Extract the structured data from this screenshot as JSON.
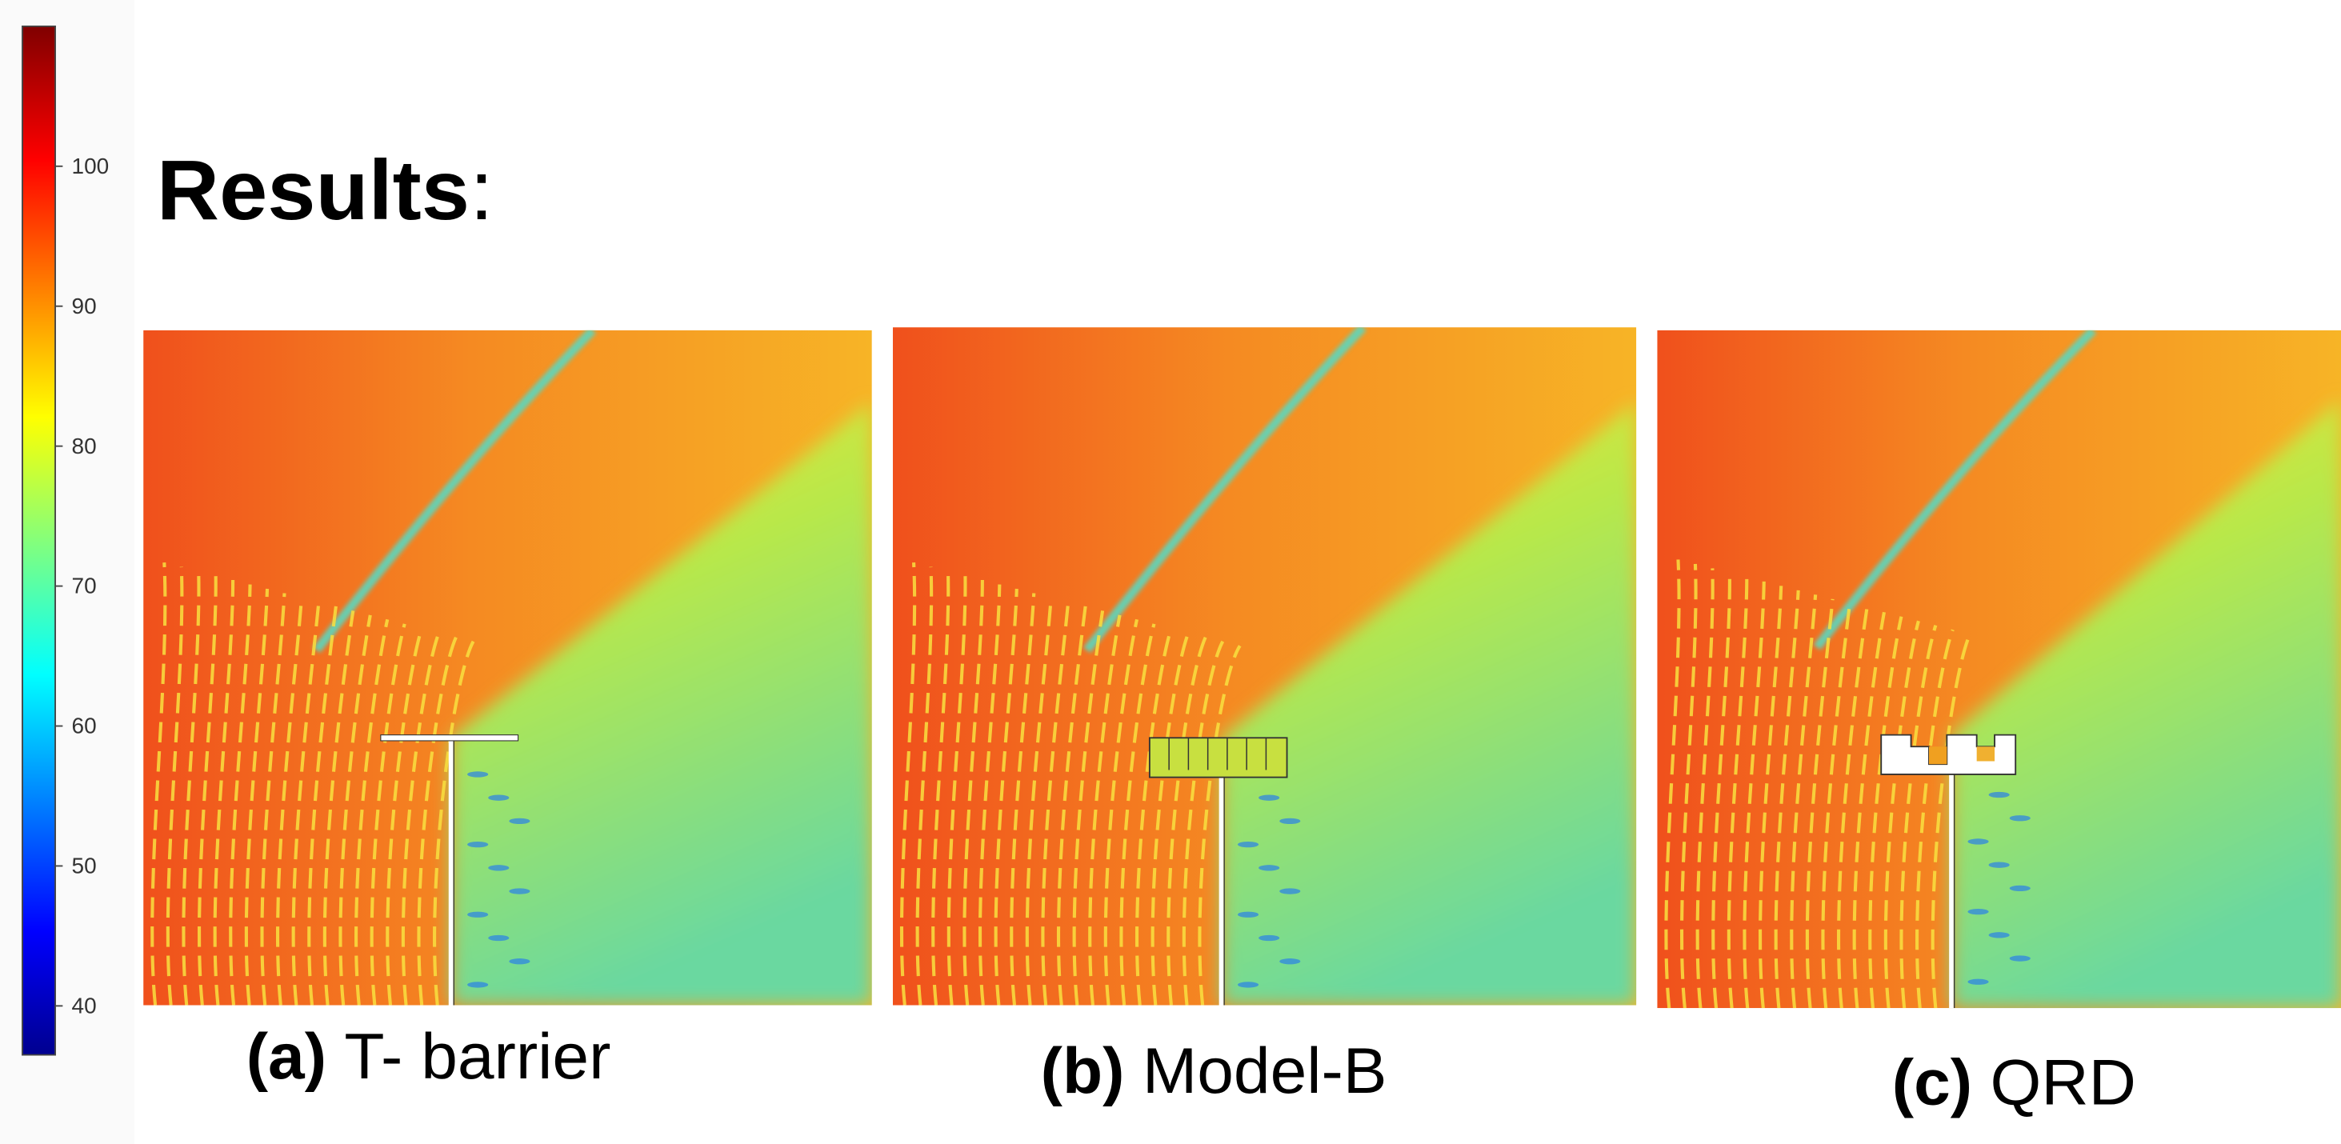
{
  "title": {
    "text": "Results",
    "suffix": ":"
  },
  "colorbar": {
    "clim": [
      36.5,
      110
    ],
    "ticks": [
      40,
      50,
      60,
      70,
      80,
      90,
      100
    ]
  },
  "panels": [
    {
      "label": "(a)",
      "name": "T- barrier"
    },
    {
      "label": "(b)",
      "name": "Model-B"
    },
    {
      "label": "(c)",
      "name": "QRD"
    }
  ]
}
